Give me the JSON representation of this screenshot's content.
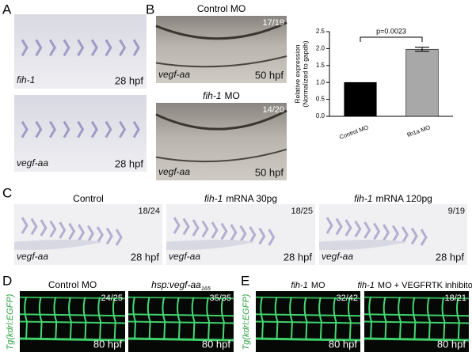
{
  "panel_labels": [
    "A",
    "B",
    "C",
    "D",
    "E"
  ],
  "A": {
    "images": [
      {
        "gene": "fih-1",
        "stage": "28 hpf"
      },
      {
        "gene": "vegf-aa",
        "stage": "28 hpf"
      }
    ]
  },
  "B": {
    "images": [
      {
        "title": "Control MO",
        "count": "17/19",
        "gene": "vegf-aa",
        "stage": "50 hpf"
      },
      {
        "title_italic": "fih-1",
        "title": "MO",
        "count": "14/20",
        "gene": "vegf-aa",
        "stage": "50 hpf"
      }
    ]
  },
  "chart_data": {
    "type": "bar",
    "categories": [
      "Control MO",
      "fih1a MO"
    ],
    "values": [
      1.0,
      1.98
    ],
    "errors": [
      0,
      0.06
    ],
    "colors": [
      "#000000",
      "#a8a8a8"
    ],
    "ylabel": [
      "Relative expression",
      "(Normalized to gapdh)"
    ],
    "annotation": "p=0.0023",
    "ylim": [
      0,
      2.5
    ],
    "yticks": [
      {
        "value": 0,
        "label": "0.0"
      },
      0.5,
      {
        "value": 1,
        "label": "1.0"
      },
      1.5,
      {
        "value": 2,
        "label": "2.0"
      },
      2.5
    ]
  },
  "C": {
    "images": [
      {
        "title": "Control",
        "count": "18/24",
        "gene": "vegf-aa",
        "stage": "28 hpf"
      },
      {
        "title_italic": "fih-1",
        "title": "mRNA 30pg",
        "count": "18/25",
        "gene": "vegf-aa",
        "stage": "28 hpf"
      },
      {
        "title_italic": "fih-1",
        "title": "mRNA 120pg",
        "count": "9/19",
        "gene": "vegf-aa",
        "stage": "28 hpf"
      }
    ]
  },
  "D": {
    "ylabel": "Tg(kdrl:EGFP)",
    "images": [
      {
        "title": "Control MO",
        "count": "24/25",
        "stage": "80 hpf"
      },
      {
        "title_italic": "hsp:vegf-aa",
        "title_sub": "165",
        "count": "35/35",
        "stage": "80 hpf"
      }
    ]
  },
  "E": {
    "ylabel": "Tg(kdrl:EGFP)",
    "images": [
      {
        "title_italic": "fih-1",
        "title": "MO",
        "count": "32/42",
        "stage": "80 hpf"
      },
      {
        "title_italic": "fih-1",
        "title": "MO + VEGFRTK inhibitor",
        "count": "18/21",
        "stage": "80 hpf"
      }
    ]
  }
}
